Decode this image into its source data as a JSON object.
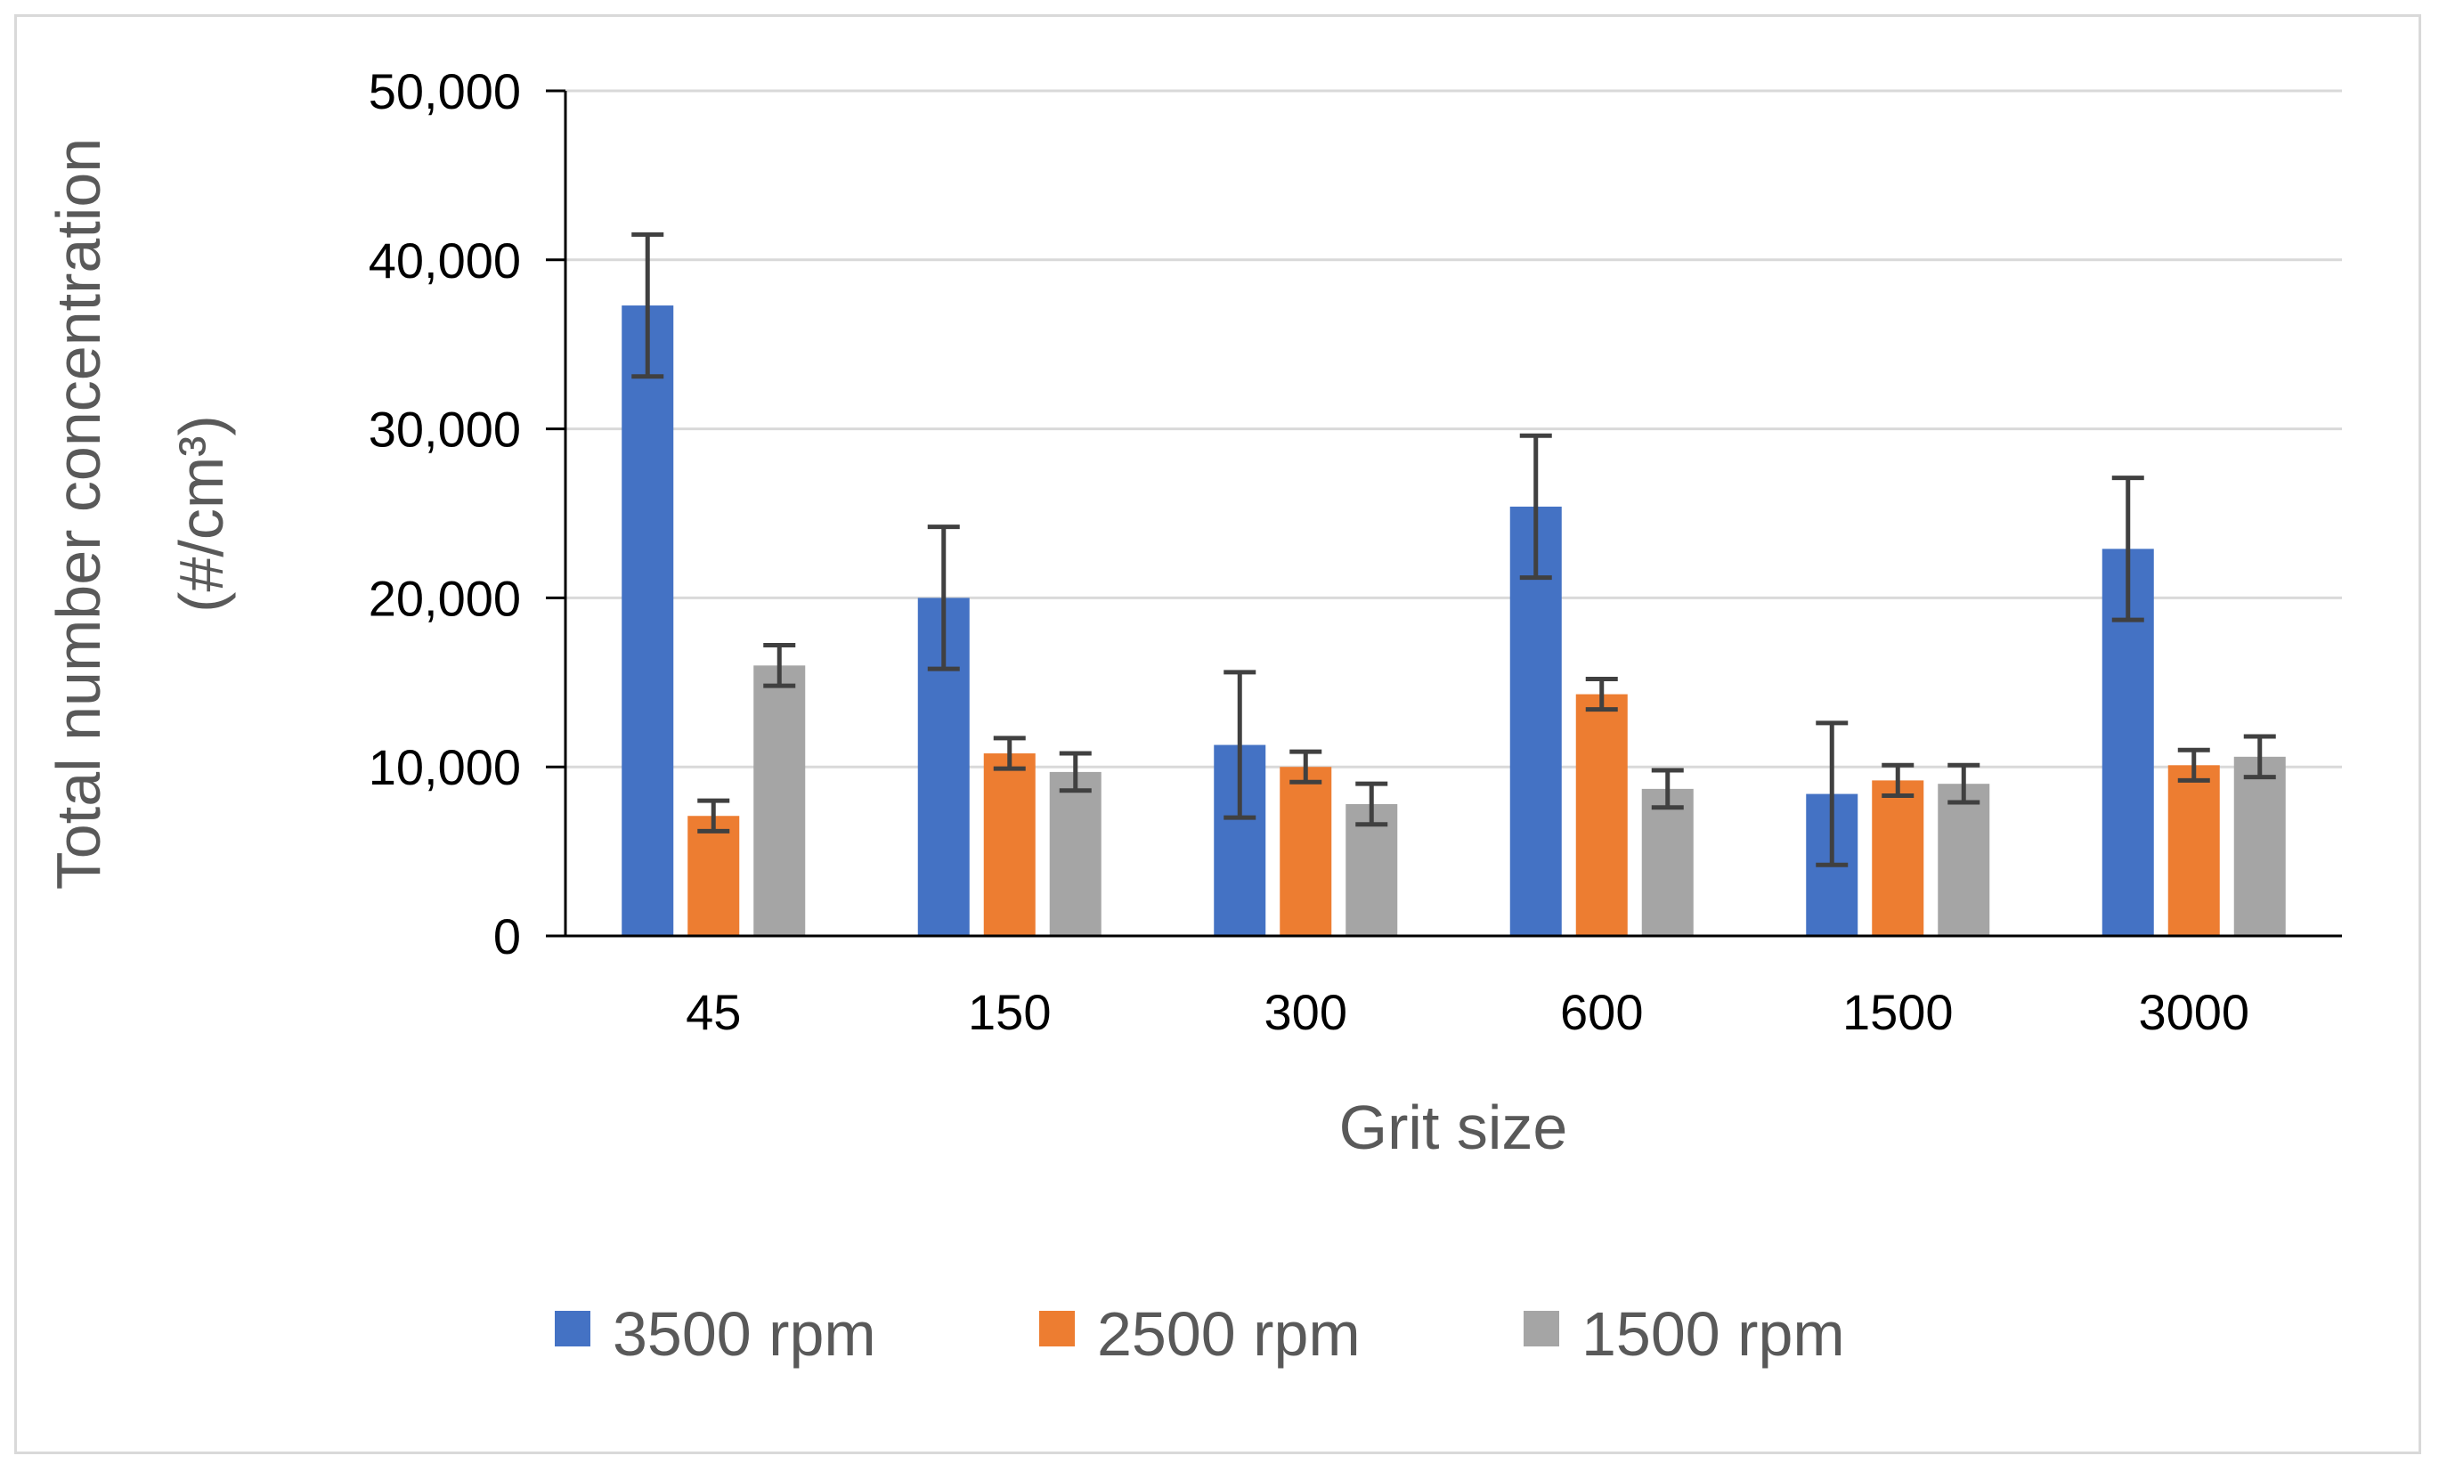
{
  "chart_data": {
    "type": "bar",
    "title": "",
    "xlabel": "Grit size",
    "ylabel_line1": "Total number concentration",
    "ylabel_line2": "(#/cm³)",
    "ylim": [
      0,
      50000
    ],
    "yticks": [
      0,
      10000,
      20000,
      30000,
      40000,
      50000
    ],
    "ytick_labels": [
      "0",
      "10,000",
      "20,000",
      "30,000",
      "40,000",
      "50,000"
    ],
    "grid": true,
    "legend_position": "bottom",
    "categories": [
      "45",
      "150",
      "300",
      "600",
      "1500",
      "3000"
    ],
    "series": [
      {
        "name": "3500 rpm",
        "color": "#4472c4",
        "values": [
          37300,
          20000,
          11300,
          25400,
          8400,
          22900
        ],
        "errors": [
          4200,
          4200,
          4300,
          4200,
          4200,
          4200
        ]
      },
      {
        "name": "2500 rpm",
        "color": "#ed7d31",
        "values": [
          7100,
          10800,
          10000,
          14300,
          9200,
          10100
        ],
        "errors": [
          900,
          900,
          900,
          900,
          900,
          900
        ]
      },
      {
        "name": "1500 rpm",
        "color": "#a5a5a5",
        "values": [
          16000,
          9700,
          7800,
          8700,
          9000,
          10600
        ],
        "errors": [
          1200,
          1100,
          1200,
          1100,
          1100,
          1200
        ]
      }
    ],
    "error_bar_color": "#404040",
    "gridline_color": "#d9d9d9",
    "axis_color": "#000000"
  }
}
